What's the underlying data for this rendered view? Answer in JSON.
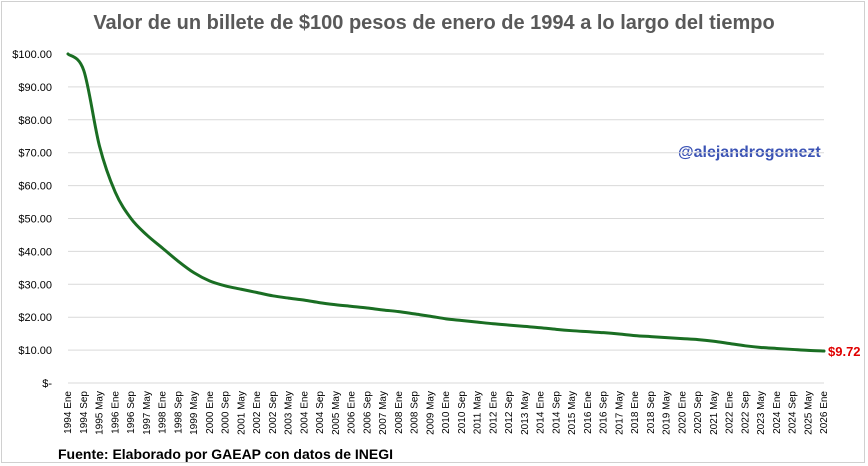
{
  "chart_data": {
    "type": "line",
    "title": "Valor de un billete de $100 pesos de enero de 1994 a lo largo del tiempo",
    "annotation": "@alejandrogomezt",
    "source": "Fuente: Elaborado por GAEAP con datos de INEGI",
    "end_label": "$9.72",
    "xlabel": "",
    "ylabel": "",
    "ylim": [
      0,
      100
    ],
    "grid": true,
    "legend": "none",
    "line_color": "#1a6e23",
    "y_ticks": [
      {
        "value": 100,
        "label": "$100.00"
      },
      {
        "value": 90,
        "label": "$90.00"
      },
      {
        "value": 80,
        "label": "$80.00"
      },
      {
        "value": 70,
        "label": "$70.00"
      },
      {
        "value": 60,
        "label": "$60.00"
      },
      {
        "value": 50,
        "label": "$50.00"
      },
      {
        "value": 40,
        "label": "$40.00"
      },
      {
        "value": 30,
        "label": "$30.00"
      },
      {
        "value": 20,
        "label": "$20.00"
      },
      {
        "value": 10,
        "label": "$10.00"
      },
      {
        "value": 0,
        "label": "$-"
      }
    ],
    "x_ticks": [
      "1994 Ene",
      "1994 Sep",
      "1995 May",
      "1996 Ene",
      "1996 Sep",
      "1997 May",
      "1998 Ene",
      "1998 Sep",
      "1999 May",
      "2000 Ene",
      "2000 Sep",
      "2001 May",
      "2002 Ene",
      "2002 Sep",
      "2003 May",
      "2004 Ene",
      "2004 Sep",
      "2005 May",
      "2006 Ene",
      "2006 Sep",
      "2007 May",
      "2008 Ene",
      "2008 Sep",
      "2009 May",
      "2010 Ene",
      "2010 Sep",
      "2011 May",
      "2012 Ene",
      "2012 Sep",
      "2013 May",
      "2014 Ene",
      "2014 Sep",
      "2015 May",
      "2016 Ene",
      "2016 Sep",
      "2017 May",
      "2018 Ene",
      "2018 Sep",
      "2019 May",
      "2020 Ene",
      "2020 Sep",
      "2021 May",
      "2022 Ene",
      "2022 Sep",
      "2023 May",
      "2024 Ene",
      "2024 Sep",
      "2025 May",
      "2026 Ene"
    ],
    "series": [
      {
        "x": [
          "1994 Ene",
          "1994 Sep",
          "1995 May",
          "1996 Ene",
          "1996 Sep",
          "1997 May",
          "1998 Ene",
          "1998 Sep",
          "1999 May",
          "2000 Ene",
          "2000 Sep",
          "2001 May",
          "2002 Ene",
          "2002 Sep",
          "2003 May",
          "2004 Ene",
          "2004 Sep",
          "2005 May",
          "2006 Ene",
          "2006 Sep",
          "2007 May",
          "2008 Ene",
          "2008 Sep",
          "2009 May",
          "2010 Ene",
          "2010 Sep",
          "2011 May",
          "2012 Ene",
          "2012 Sep",
          "2013 May",
          "2014 Ene",
          "2014 Sep",
          "2015 May",
          "2016 Ene",
          "2016 Sep",
          "2017 May",
          "2018 Ene",
          "2018 Sep",
          "2019 May",
          "2020 Ene",
          "2020 Sep",
          "2021 May",
          "2022 Ene",
          "2022 Sep",
          "2023 May",
          "2024 Ene",
          "2024 Sep",
          "2025 May",
          "2026 Ene"
        ],
        "values": [
          100,
          95,
          72,
          58,
          50,
          45,
          41,
          37,
          33.5,
          31,
          29.5,
          28.5,
          27.5,
          26.5,
          25.8,
          25.2,
          24.4,
          23.8,
          23.3,
          22.8,
          22.2,
          21.7,
          21,
          20.3,
          19.5,
          19,
          18.5,
          18,
          17.6,
          17.2,
          16.8,
          16.3,
          15.9,
          15.6,
          15.3,
          14.9,
          14.4,
          14.1,
          13.8,
          13.5,
          13.2,
          12.7,
          12,
          11.3,
          10.8,
          10.5,
          10.2,
          9.9,
          9.72
        ]
      }
    ]
  }
}
